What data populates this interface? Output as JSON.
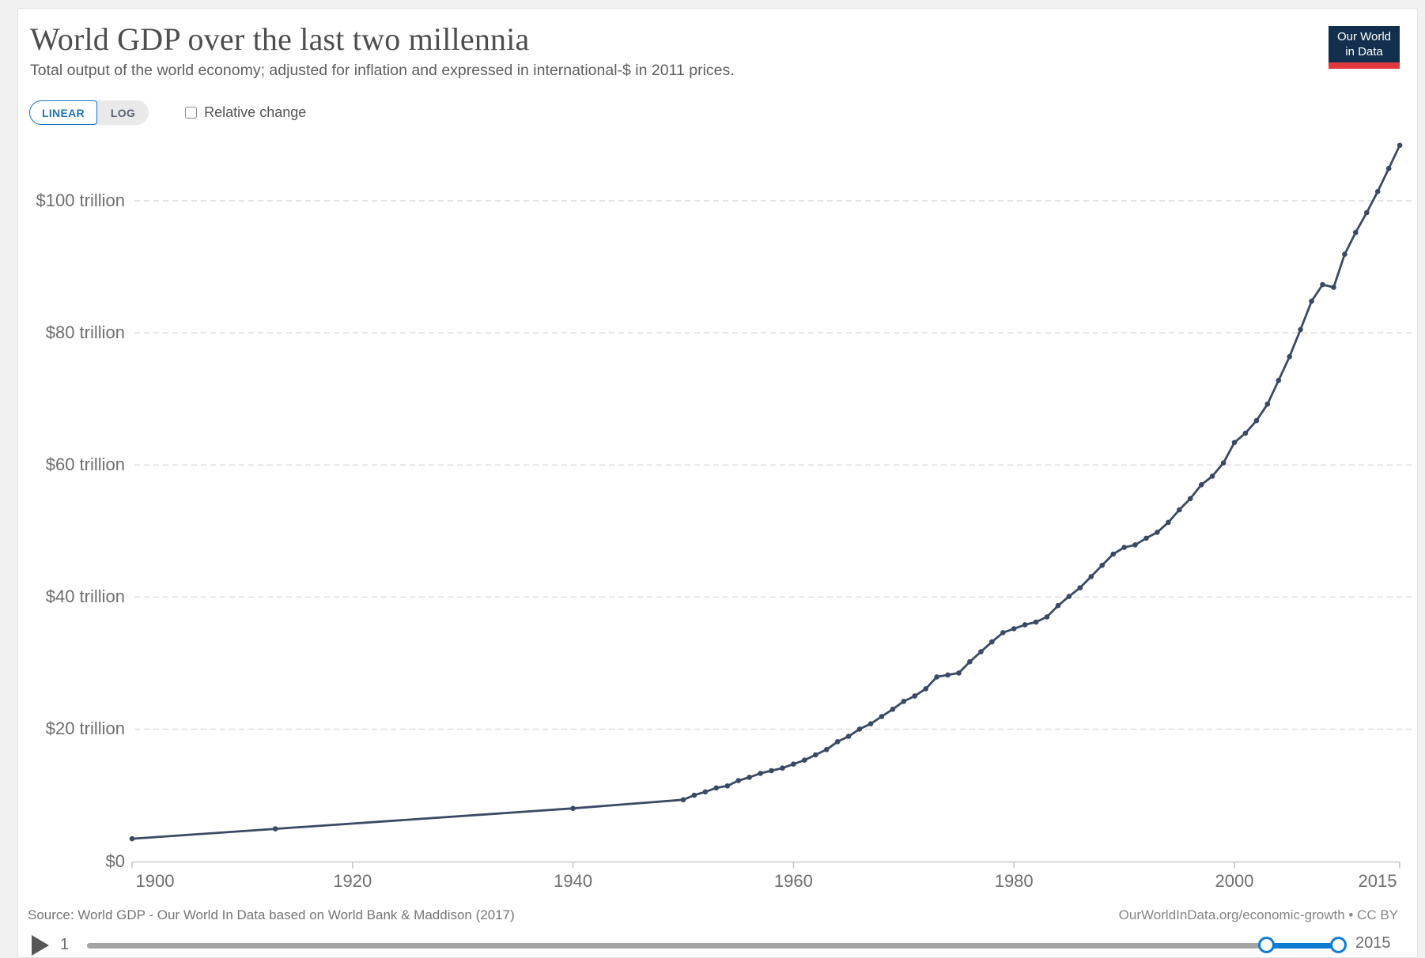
{
  "header": {
    "title": "World GDP over the last two millennia",
    "subtitle": "Total output of the world economy; adjusted for inflation and expressed in international-$ in 2011 prices.",
    "logo": {
      "line1": "Our World",
      "line2": "in Data",
      "bg_color": "#12304e",
      "bar_color": "#e0383e"
    }
  },
  "controls": {
    "scale_options": {
      "linear": "LINEAR",
      "log": "LOG",
      "selected": "LINEAR"
    },
    "relative_change_label": "Relative change",
    "relative_change_checked": false
  },
  "chart_data": {
    "type": "line",
    "title": "World GDP over the last two millennia",
    "series_name": "World GDP",
    "unit": "trillion international-$ in 2011 prices",
    "x": [
      1900,
      1913,
      1940,
      1950,
      1951,
      1952,
      1953,
      1954,
      1955,
      1956,
      1957,
      1958,
      1959,
      1960,
      1961,
      1962,
      1963,
      1964,
      1965,
      1966,
      1967,
      1968,
      1969,
      1970,
      1971,
      1972,
      1973,
      1974,
      1975,
      1976,
      1977,
      1978,
      1979,
      1980,
      1981,
      1982,
      1983,
      1984,
      1985,
      1986,
      1987,
      1988,
      1989,
      1990,
      1991,
      1992,
      1993,
      1994,
      1995,
      1996,
      1997,
      1998,
      1999,
      2000,
      2001,
      2002,
      2003,
      2004,
      2005,
      2006,
      2007,
      2008,
      2009,
      2010,
      2011,
      2012,
      2013,
      2014,
      2015
    ],
    "y_trillions": [
      3.4,
      4.9,
      8.0,
      9.3,
      10.0,
      10.5,
      11.1,
      11.4,
      12.2,
      12.7,
      13.3,
      13.7,
      14.1,
      14.7,
      15.3,
      16.1,
      16.9,
      18.1,
      18.9,
      20.0,
      20.8,
      21.9,
      23.0,
      24.2,
      25.0,
      26.1,
      27.9,
      28.2,
      28.5,
      30.2,
      31.7,
      33.2,
      34.6,
      35.2,
      35.8,
      36.2,
      37.0,
      38.7,
      40.1,
      41.4,
      43.1,
      44.8,
      46.5,
      47.5,
      47.9,
      48.9,
      49.8,
      51.3,
      53.2,
      54.9,
      57.0,
      58.3,
      60.3,
      63.4,
      64.8,
      66.7,
      69.2,
      72.8,
      76.4,
      80.5,
      84.8,
      87.3,
      86.9,
      91.9,
      95.2,
      98.2,
      101.4,
      104.9,
      108.4
    ],
    "xlim": [
      1900,
      2015
    ],
    "ylim": [
      0,
      112
    ],
    "x_ticks": [
      1900,
      1920,
      1940,
      1960,
      1980,
      2000,
      2015
    ],
    "y_ticks": [
      {
        "value": 0,
        "label": "$0"
      },
      {
        "value": 20,
        "label": "$20 trillion"
      },
      {
        "value": 40,
        "label": "$40 trillion"
      },
      {
        "value": 60,
        "label": "$60 trillion"
      },
      {
        "value": 80,
        "label": "$80 trillion"
      },
      {
        "value": 100,
        "label": "$100 trillion"
      }
    ],
    "grid": "horizontal-dashed",
    "legend": "none",
    "line_color": "#3a4964",
    "markers": true
  },
  "footer": {
    "source": "Source: World GDP - Our World In Data based on World Bank & Maddison (2017)",
    "link": "OurWorldInData.org/economic-growth • CC BY"
  },
  "timeline": {
    "min": 1,
    "max": 2015,
    "start_label": "1",
    "end_label": "2015",
    "selected_start": 1900,
    "selected_end": 2015,
    "accent_color": "#0d7ad4"
  }
}
